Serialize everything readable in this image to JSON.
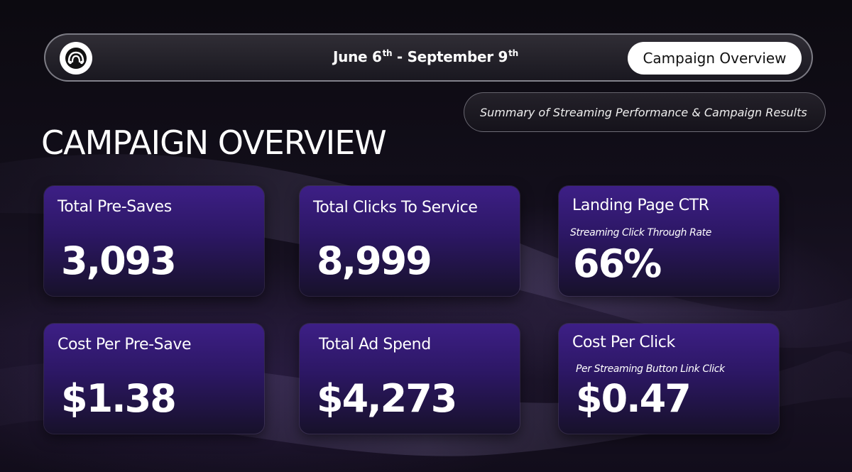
{
  "header": {
    "date_start": "June 6",
    "date_start_suffix": "th",
    "date_separator": " - ",
    "date_end": "September 9",
    "date_end_suffix": "th",
    "nav_button_label": "Campaign Overview"
  },
  "summary": "Summary of Streaming Performance & Campaign Results",
  "page_title": "CAMPAIGN OVERVIEW",
  "cards": [
    {
      "label": "Total Pre-Saves",
      "subtitle": "",
      "value": "3,093"
    },
    {
      "label": "Total Clicks To Service",
      "subtitle": "",
      "value": "8,999"
    },
    {
      "label": "Landing Page CTR",
      "subtitle": "Streaming Click Through Rate",
      "value": "66%"
    },
    {
      "label": "Cost Per Pre-Save",
      "subtitle": "",
      "value": "$1.38"
    },
    {
      "label": "Total Ad Spend",
      "subtitle": "",
      "value": "$4,273"
    },
    {
      "label": "Cost Per Click",
      "subtitle": "Per Streaming Button Link Click",
      "value": "$0.47"
    }
  ],
  "colors": {
    "card_top": "#3d1f86",
    "card_bottom": "#17112a",
    "accent_white": "#ffffff",
    "background": "#0c0a10"
  }
}
